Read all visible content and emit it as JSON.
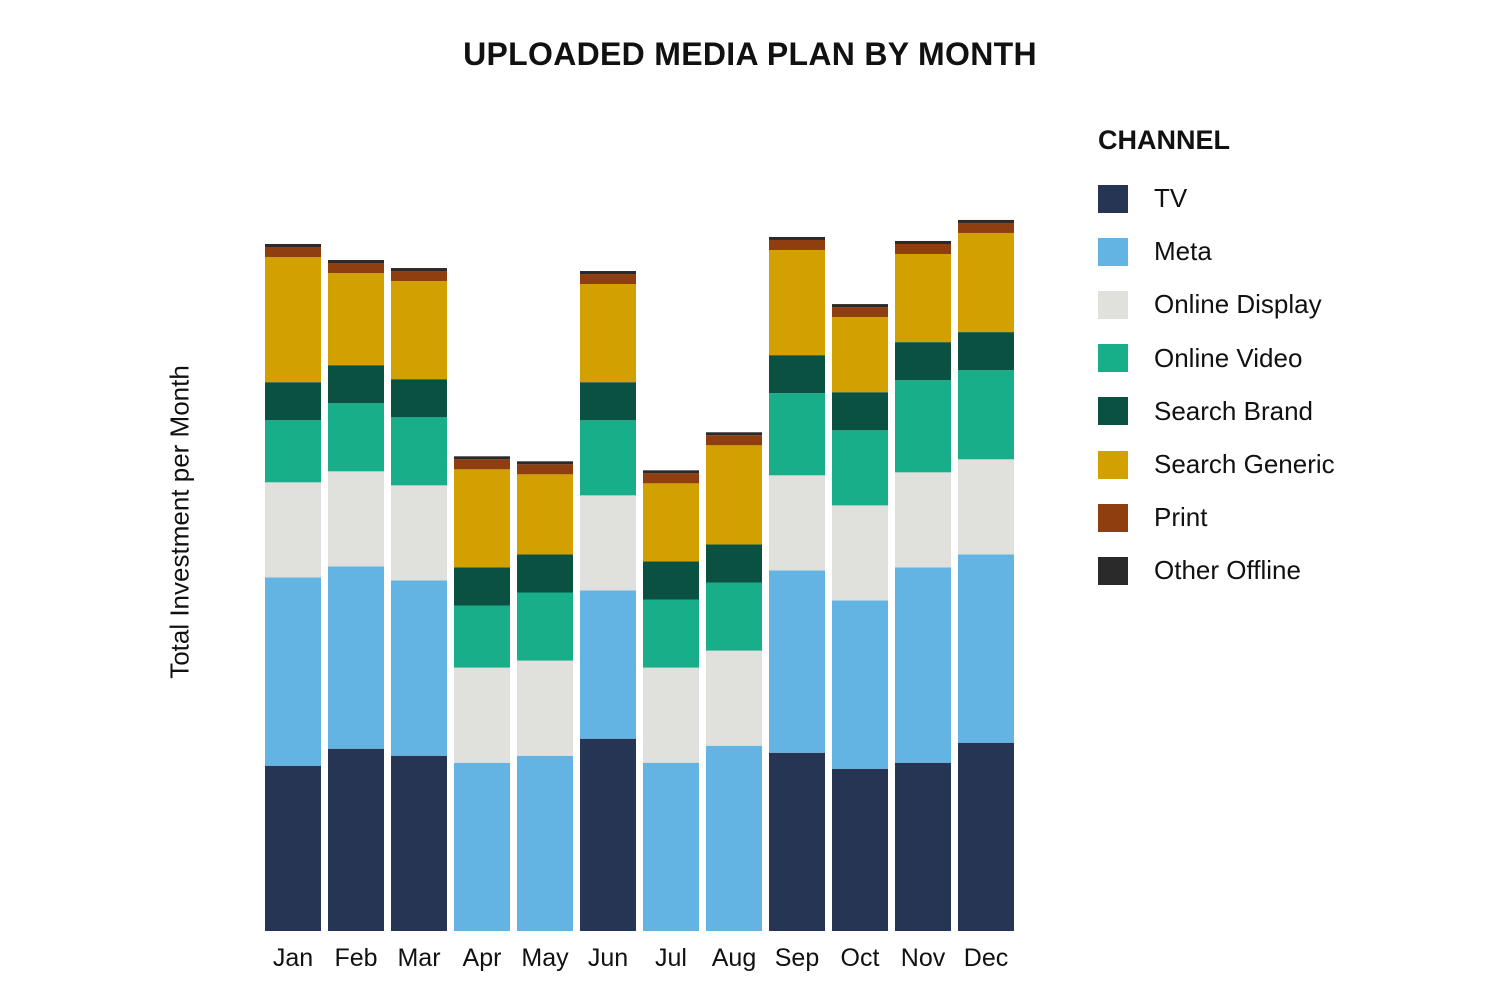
{
  "chart_data": {
    "type": "bar",
    "stacked": true,
    "title": "UPLOADED MEDIA PLAN BY MONTH",
    "xlabel": "",
    "ylabel": "Total Investment per Month",
    "categories": [
      "Jan",
      "Feb",
      "Mar",
      "Apr",
      "May",
      "Jun",
      "Jul",
      "Aug",
      "Sep",
      "Oct",
      "Nov",
      "Dec"
    ],
    "ylim": [
      0,
      68
    ],
    "grid": false,
    "legend": {
      "title": "CHANNEL",
      "placement": "right"
    },
    "series": [
      {
        "name": "TV",
        "color": "#253553",
        "values": [
          16.5,
          18.2,
          17.5,
          0,
          0,
          19.2,
          0,
          0,
          17.8,
          16.2,
          16.8,
          18.8
        ]
      },
      {
        "name": "Meta",
        "color": "#63b4e3",
        "values": [
          18.8,
          18.2,
          17.5,
          16.8,
          17.5,
          14.8,
          16.8,
          18.5,
          18.2,
          16.8,
          19.5,
          18.8
        ]
      },
      {
        "name": "Online Display",
        "color": "#e0e0dc",
        "values": [
          9.5,
          9.5,
          9.5,
          9.5,
          9.5,
          9.5,
          9.5,
          9.5,
          9.5,
          9.5,
          9.5,
          9.5
        ]
      },
      {
        "name": "Online Video",
        "color": "#18ae8a",
        "values": [
          6.2,
          6.8,
          6.8,
          6.2,
          6.8,
          7.5,
          6.8,
          6.8,
          8.2,
          7.5,
          9.2,
          8.9
        ]
      },
      {
        "name": "Search Brand",
        "color": "#0b5142",
        "values": [
          3.8,
          3.8,
          3.8,
          3.8,
          3.8,
          3.8,
          3.8,
          3.8,
          3.8,
          3.8,
          3.8,
          3.8
        ]
      },
      {
        "name": "Search Generic",
        "color": "#d2a100",
        "values": [
          12.5,
          9.2,
          9.8,
          9.8,
          8.0,
          9.8,
          7.8,
          9.9,
          10.5,
          7.5,
          8.8,
          9.9
        ]
      },
      {
        "name": "Print",
        "color": "#8f3e10",
        "values": [
          1.0,
          1.0,
          1.0,
          1.0,
          1.0,
          1.0,
          1.0,
          1.0,
          1.0,
          1.0,
          1.0,
          1.0
        ]
      },
      {
        "name": "Other Offline",
        "color": "#2a2a2a",
        "values": [
          0.3,
          0.3,
          0.3,
          0.3,
          0.3,
          0.3,
          0.3,
          0.3,
          0.3,
          0.3,
          0.3,
          0.3
        ]
      }
    ]
  }
}
